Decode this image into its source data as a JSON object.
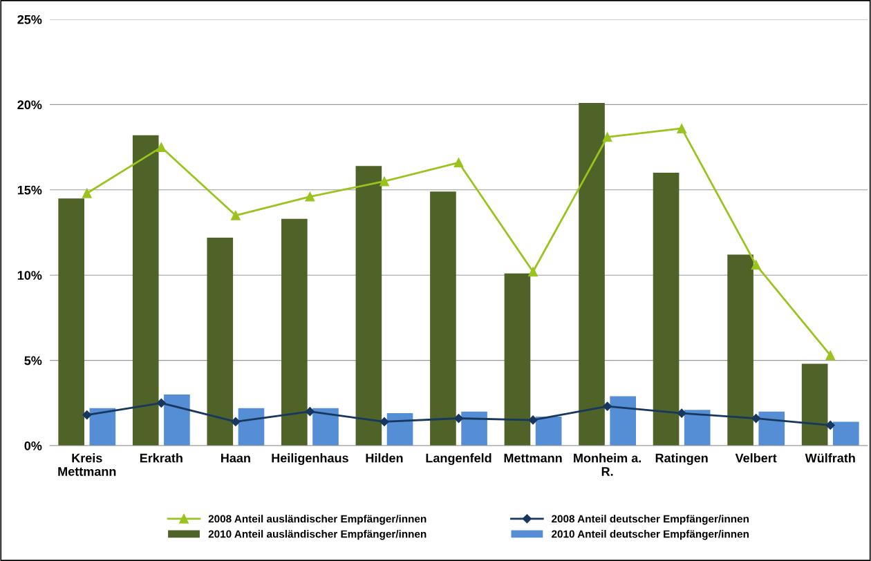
{
  "chart_data": {
    "type": "bar",
    "categories": [
      "Kreis Mettmann",
      "Erkrath",
      "Haan",
      "Heiligenhaus",
      "Hilden",
      "Langenfeld",
      "Mettmann",
      "Monheim a. R.",
      "Ratingen",
      "Velbert",
      "Wülfrath"
    ],
    "series": [
      {
        "name": "2008 Anteil ausländischer Empfänger/innen",
        "type": "line",
        "marker": "triangle",
        "color": "#9bc31e",
        "values": [
          14.8,
          17.5,
          13.5,
          14.6,
          15.5,
          16.6,
          10.2,
          18.1,
          18.6,
          10.6,
          5.3
        ]
      },
      {
        "name": "2010 Anteil ausländischer Empfänger/innen",
        "color": "#4f6228",
        "values": [
          14.5,
          18.2,
          12.2,
          13.3,
          16.4,
          14.9,
          10.1,
          20.1,
          16.0,
          11.2,
          4.8
        ]
      },
      {
        "name": "2008 Anteil deutscher Empfänger/innen",
        "type": "line",
        "marker": "diamond",
        "color": "#17375e",
        "values": [
          1.8,
          2.5,
          1.4,
          2.0,
          1.4,
          1.6,
          1.5,
          2.3,
          1.9,
          1.6,
          1.2
        ]
      },
      {
        "name": "2010 Anteil deutscher Empfänger/innen",
        "color": "#558ed5",
        "values": [
          2.2,
          3.0,
          2.2,
          2.2,
          1.9,
          2.0,
          1.7,
          2.9,
          2.1,
          2.0,
          1.4
        ]
      }
    ],
    "ylim": [
      0,
      25
    ],
    "yticks": [
      {
        "value": 0,
        "label": "0%"
      },
      {
        "value": 5,
        "label": "5%"
      },
      {
        "value": 10,
        "label": "10%"
      },
      {
        "value": 15,
        "label": "15%"
      },
      {
        "value": 20,
        "label": "20%"
      },
      {
        "value": 25,
        "label": "25%"
      }
    ],
    "grid": "y",
    "legend": "bottom"
  }
}
